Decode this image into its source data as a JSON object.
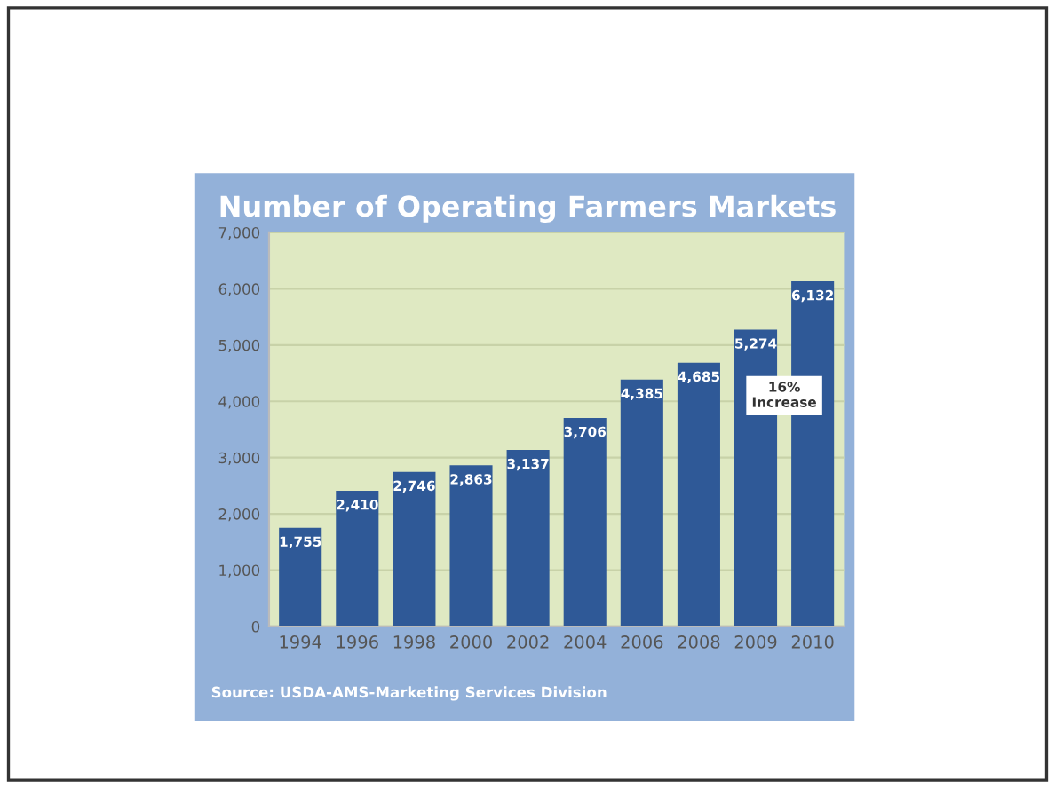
{
  "chart_data": {
    "type": "bar",
    "title": "Number of Operating Farmers Markets",
    "categories": [
      "1994",
      "1996",
      "1998",
      "2000",
      "2002",
      "2004",
      "2006",
      "2008",
      "2009",
      "2010"
    ],
    "values": [
      1755,
      2410,
      2746,
      2863,
      3137,
      3706,
      4385,
      4685,
      5274,
      6132
    ],
    "value_labels": [
      "1,755",
      "2,410",
      "2,746",
      "2,863",
      "3,137",
      "3,706",
      "4,385",
      "4,685",
      "5,274",
      "6,132"
    ],
    "color": "#2f5997",
    "ylim": [
      0,
      7000
    ],
    "yticks": [
      {
        "value": 0,
        "label": "0"
      },
      {
        "value": 1000,
        "label": "1,000"
      },
      {
        "value": 2000,
        "label": "2,000"
      },
      {
        "value": 3000,
        "label": "3,000"
      },
      {
        "value": 4000,
        "label": "4,000"
      },
      {
        "value": 5000,
        "label": "5,000"
      },
      {
        "value": 6000,
        "label": "6,000"
      },
      {
        "value": 7000,
        "label": "7,000"
      }
    ],
    "grid": "y",
    "annotations": [
      "16%\nIncrease",
      "Source: USDA-AMS-Marketing Services Division"
    ]
  }
}
